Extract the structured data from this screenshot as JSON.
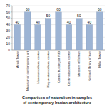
{
  "chart_data": {
    "type": "bar",
    "title": "Comparison of naturalism in samples of contemporary Iranian architecture",
    "categories": [
      "Azadi Tower",
      "Museum of contemporary art",
      "Niavaran cultural center",
      "Negarestan cultural center",
      "Central building of IRIB",
      "Dehkhoda cultural center",
      "Museum of Tehran",
      "National library of Iran",
      "Milad Tower"
    ],
    "values": [
      40,
      60,
      40,
      50,
      60,
      40,
      50,
      40,
      60
    ],
    "color": "#9db4d4",
    "ylim": [
      0,
      70
    ],
    "yticks": [
      0,
      10,
      20,
      30,
      40,
      50,
      60,
      70
    ],
    "grid": true,
    "data_labels": true
  }
}
